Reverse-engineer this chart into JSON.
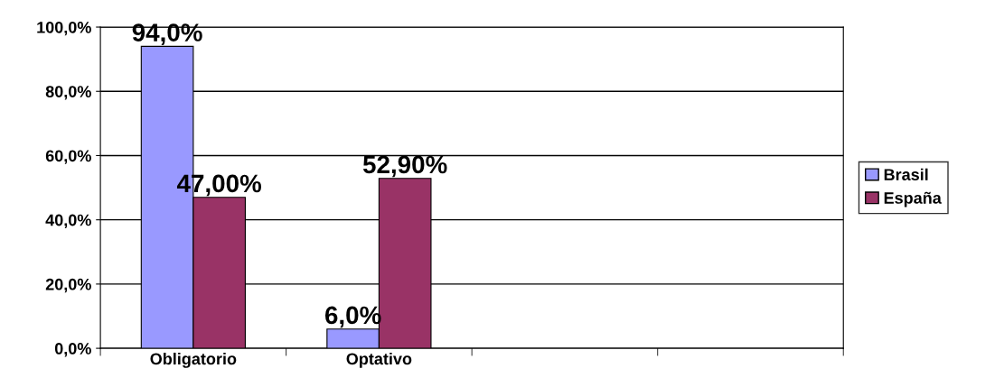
{
  "chart_data": {
    "type": "bar",
    "categories": [
      "Obligatorio",
      "Optativo",
      null,
      null
    ],
    "series": [
      {
        "name": "Brasil",
        "color": "#9999ff",
        "values": [
          94.0,
          6.0,
          null,
          null
        ],
        "value_labels": [
          "94,0%",
          "6,0%",
          null,
          null
        ]
      },
      {
        "name": "España",
        "color": "#993366",
        "values": [
          47.0,
          52.9,
          null,
          null
        ],
        "value_labels": [
          "47,00%",
          "52,90%",
          null,
          null
        ]
      }
    ],
    "ylim": [
      0,
      100
    ],
    "yticks": [
      {
        "value": 0,
        "label": "0,0%"
      },
      {
        "value": 20,
        "label": "20,0%"
      },
      {
        "value": 40,
        "label": "40,0%"
      },
      {
        "value": 60,
        "label": "60,0%"
      },
      {
        "value": 80,
        "label": "80,0%"
      },
      {
        "value": 100,
        "label": "100,0%"
      }
    ],
    "grid": "y",
    "legend": "right"
  }
}
